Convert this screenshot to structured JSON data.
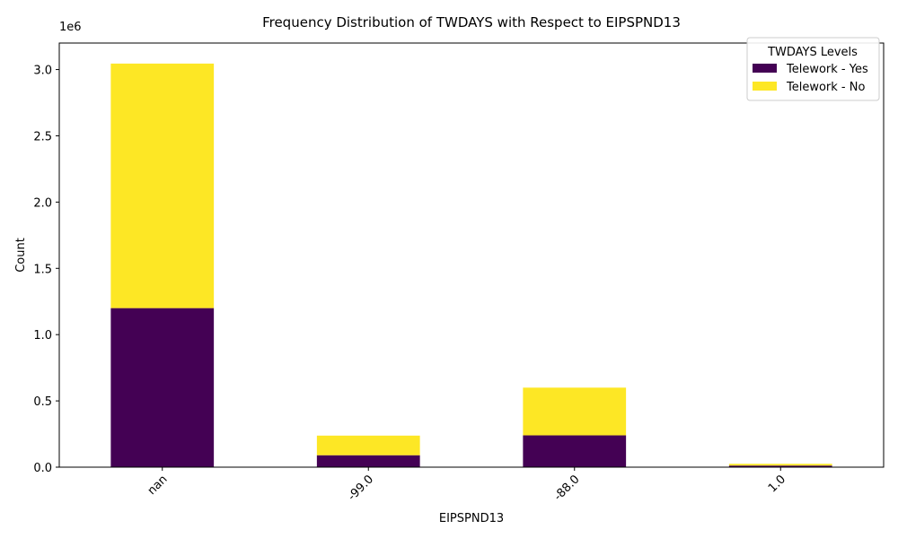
{
  "chart_data": {
    "type": "bar",
    "stacked": true,
    "title": "Frequency Distribution of TWDAYS with Respect to EIPSPND13",
    "xlabel": "EIPSPND13",
    "ylabel": "Count",
    "y_offset_label": "1e6",
    "categories": [
      "nan",
      "-99.0",
      "-88.0",
      "1.0"
    ],
    "ylim": [
      0,
      3200000
    ],
    "yticks": [
      0,
      500000,
      1000000,
      1500000,
      2000000,
      2500000,
      3000000
    ],
    "ytick_labels": [
      "0.0",
      "0.5",
      "1.0",
      "1.5",
      "2.0",
      "2.5",
      "3.0"
    ],
    "grid": false,
    "legend": {
      "title": "TWDAYS Levels",
      "placement": "top-right"
    },
    "series": [
      {
        "name": "Telework - Yes",
        "color": "#440154",
        "values": [
          1200000,
          90000,
          240000,
          12000
        ]
      },
      {
        "name": "Telework - No",
        "color": "#fde725",
        "values": [
          1845000,
          148000,
          360000,
          13000
        ]
      }
    ]
  }
}
